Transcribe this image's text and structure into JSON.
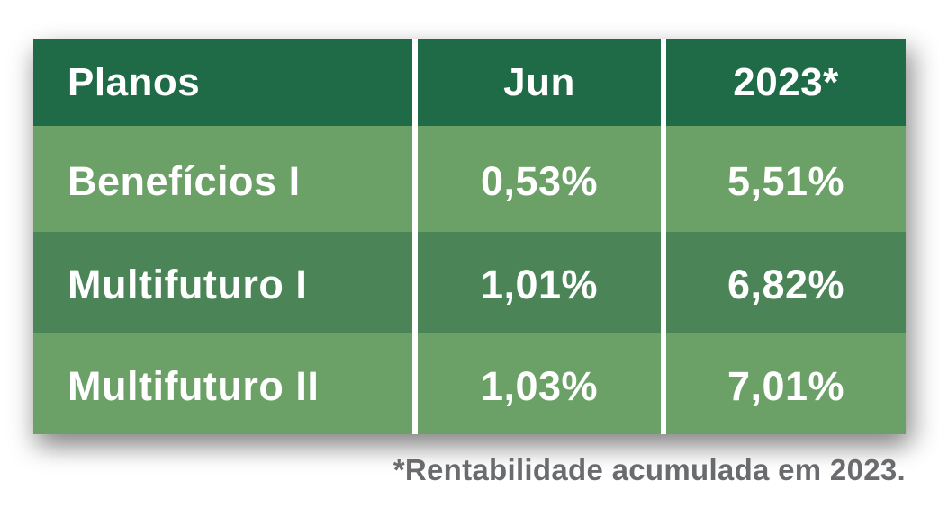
{
  "chart_data": {
    "type": "table",
    "columns": [
      "Planos",
      "Jun",
      "2023*"
    ],
    "rows": [
      [
        "Benefícios I",
        "0,53%",
        "5,51%"
      ],
      [
        "Multifuturo I",
        "1,01%",
        "6,82%"
      ],
      [
        "Multifuturo II",
        "1,03%",
        "7,01%"
      ]
    ],
    "footnote": "*Rentabilidade acumulada em 2023.",
    "layout": {
      "column_alignments": [
        "left",
        "center",
        "center"
      ],
      "row_band_pattern": [
        "light",
        "medium",
        "light"
      ],
      "divider": "white vertical gaps between columns"
    }
  },
  "colors": {
    "header_green": "#1f6b47",
    "row_light_green": "#6ba166",
    "row_medium_green": "#4a8457",
    "divider_white": "#ffffff",
    "cell_text": "#ffffff",
    "footnote_gray": "#6a6b6e",
    "page_background": "#ffffff"
  }
}
